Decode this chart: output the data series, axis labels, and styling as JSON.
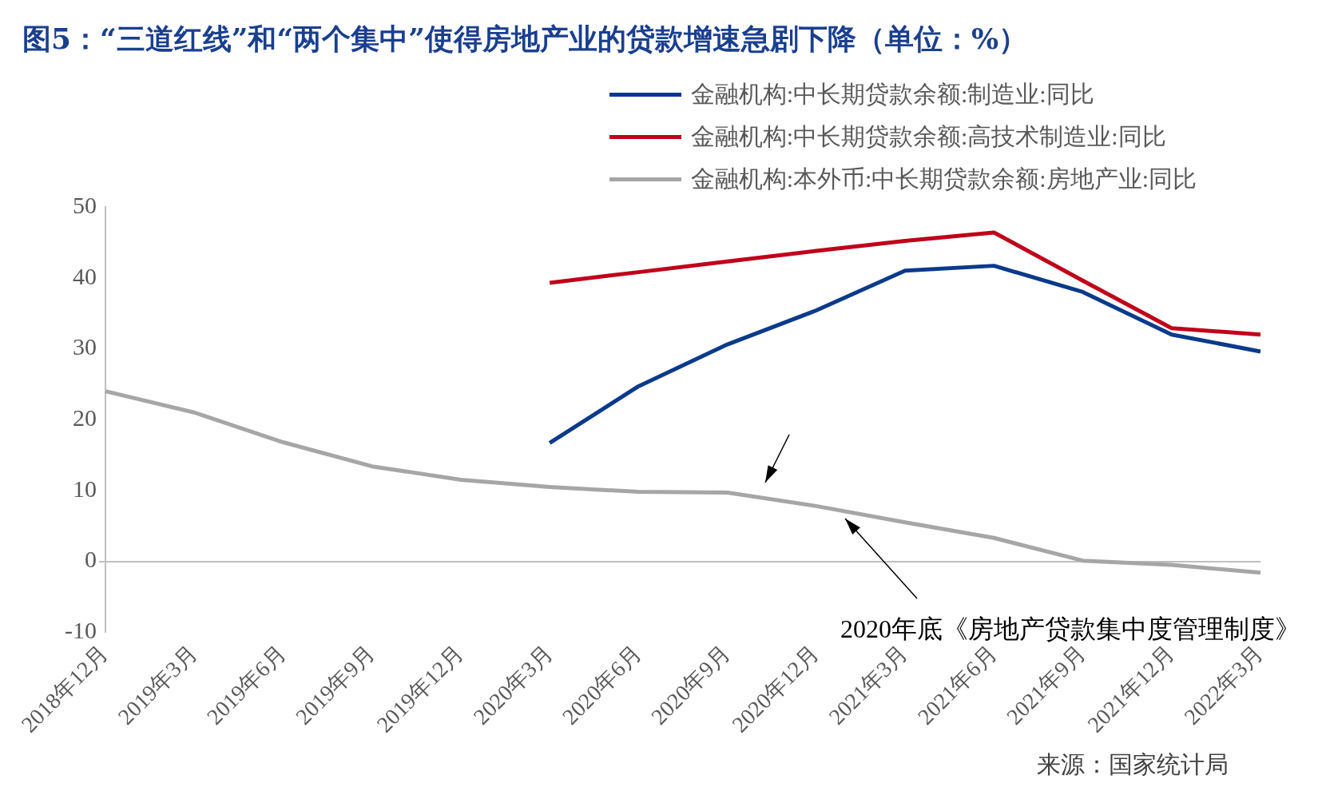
{
  "chart_data": {
    "type": "line",
    "title": "图5：“三道红线”和“两个集中”使得房地产业的贷款增速急剧下降（单位：%）",
    "categories": [
      "2018年12月",
      "2019年3月",
      "2019年6月",
      "2019年9月",
      "2019年12月",
      "2020年3月",
      "2020年6月",
      "2020年9月",
      "2020年12月",
      "2021年3月",
      "2021年6月",
      "2021年9月",
      "2021年12月",
      "2022年3月"
    ],
    "series": [
      {
        "name": "金融机构:中长期贷款余额:制造业:同比",
        "color": "#0a3a8c",
        "values": [
          null,
          null,
          null,
          null,
          null,
          16.7,
          24.7,
          30.6,
          35.4,
          41.0,
          41.7,
          38.0,
          32.0,
          29.6
        ]
      },
      {
        "name": "金融机构:中长期贷款余额:高技术制造业:同比",
        "color": "#c0001a",
        "values": [
          null,
          null,
          null,
          null,
          null,
          39.3,
          40.8,
          42.3,
          43.8,
          45.2,
          46.4,
          39.6,
          32.9,
          32.0
        ]
      },
      {
        "name": "金融机构:本外币:中长期贷款余额:房地产业:同比",
        "color": "#a6a6a6",
        "values": [
          24.0,
          21.0,
          16.8,
          13.4,
          11.5,
          10.5,
          9.8,
          9.7,
          7.8,
          5.5,
          3.3,
          0.1,
          -0.5,
          -1.6
        ]
      }
    ],
    "ylim": [
      -10,
      50
    ],
    "yticks": [
      -10,
      0,
      10,
      20,
      30,
      40,
      50
    ],
    "legend": "top right",
    "annotations": [
      "2020年底《房地产贷款集中度管理制度》",
      "来源：国家统计局"
    ]
  }
}
